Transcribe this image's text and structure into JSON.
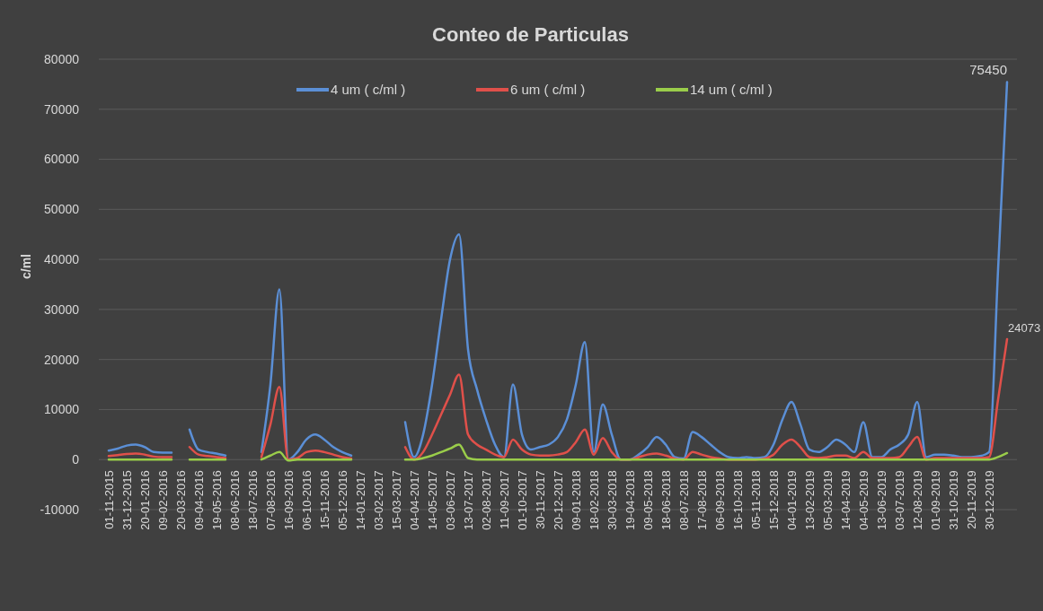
{
  "chart_data": {
    "type": "line",
    "title": "Conteo de Particulas",
    "ylabel": "c/ml",
    "ylim": [
      -10000,
      80000
    ],
    "yticks": [
      -10000,
      0,
      10000,
      20000,
      30000,
      40000,
      50000,
      60000,
      70000,
      80000
    ],
    "grid": "y",
    "legend": "top",
    "marker": "none",
    "line_style": "solid",
    "categories": [
      "01-11-2015",
      null,
      "31-12-2015",
      null,
      "20-01-2016",
      null,
      "09-02-2016",
      null,
      "20-03-2016",
      null,
      "09-04-2016",
      null,
      "19-05-2016",
      null,
      "08-06-2016",
      null,
      "18-07-2016",
      null,
      "07-08-2016",
      null,
      "16-09-2016",
      null,
      "06-10-2016",
      null,
      "15-11-2016",
      null,
      "05-12-2016",
      null,
      "14-01-2017",
      null,
      "03-02-2017",
      null,
      "15-03-2017",
      null,
      "04-04-2017",
      null,
      "14-05-2017",
      null,
      "03-06-2017",
      null,
      "13-07-2017",
      null,
      "02-08-2017",
      null,
      "11-09-2017",
      null,
      "01-10-2017",
      null,
      "30-11-2017",
      null,
      "20-12-2017",
      null,
      "09-01-2018",
      null,
      "18-02-2018",
      null,
      "30-03-2018",
      null,
      "19-04-2018",
      null,
      "09-05-2018",
      null,
      "18-06-2018",
      null,
      "08-07-2018",
      null,
      "17-08-2018",
      null,
      "06-09-2018",
      null,
      "16-10-2018",
      null,
      "05-11-2018",
      null,
      "15-12-2018",
      null,
      "04-01-2019",
      null,
      "13-02-2019",
      null,
      "05-03-2019",
      null,
      "14-04-2019",
      null,
      "04-05-2019",
      null,
      "13-06-2019",
      null,
      "03-07-2019",
      null,
      "12-08-2019",
      null,
      "01-09-2019",
      null,
      "31-10-2019",
      null,
      "20-11-2019",
      null,
      "30-12-2019",
      null,
      null
    ],
    "series": [
      {
        "name": "4 um ( c/ml )",
        "color": "#5b8fd6",
        "values": [
          1800,
          2200,
          2800,
          3000,
          2500,
          1500,
          1400,
          1400,
          null,
          6000,
          2000,
          1500,
          1200,
          800,
          null,
          null,
          null,
          1500,
          15000,
          34000,
          0,
          1500,
          4000,
          5000,
          4000,
          2500,
          1500,
          800,
          null,
          null,
          null,
          null,
          null,
          7500,
          500,
          5000,
          15000,
          28000,
          40000,
          45000,
          22000,
          14000,
          8000,
          3000,
          500,
          15000,
          5000,
          2000,
          2500,
          3000,
          4500,
          8000,
          15000,
          23500,
          1500,
          11000,
          5000,
          0,
          0,
          1000,
          2500,
          4500,
          3000,
          500,
          200,
          5500,
          4500,
          3000,
          1500,
          500,
          300,
          500,
          300,
          500,
          3000,
          8000,
          11500,
          7000,
          2000,
          1500,
          2500,
          4000,
          3000,
          1500,
          7500,
          500,
          500,
          2000,
          3000,
          5000,
          11500,
          500,
          1000,
          1000,
          800,
          500,
          500,
          700,
          1500,
          38000,
          75450
        ],
        "value_labels": [
          null,
          null,
          null,
          null,
          null,
          null,
          null,
          null,
          null,
          null,
          null,
          null,
          null,
          null,
          null,
          null,
          null,
          null,
          null,
          null,
          null,
          null,
          null,
          null,
          null,
          null,
          null,
          null,
          null,
          null,
          null,
          null,
          null,
          null,
          null,
          null,
          null,
          null,
          null,
          null,
          null,
          null,
          null,
          null,
          null,
          null,
          null,
          null,
          null,
          null,
          null,
          null,
          null,
          null,
          null,
          null,
          null,
          null,
          null,
          null,
          null,
          null,
          null,
          null,
          null,
          null,
          null,
          null,
          null,
          null,
          null,
          null,
          null,
          null,
          null,
          null,
          null,
          null,
          null,
          null,
          null,
          null,
          null,
          null,
          null,
          null,
          null,
          null,
          null,
          null,
          null,
          null,
          null,
          null,
          null,
          null,
          null,
          null,
          null,
          null,
          "75450"
        ]
      },
      {
        "name": "6 um ( c/ml )",
        "color": "#e0504a",
        "values": [
          700,
          900,
          1100,
          1200,
          1000,
          600,
          500,
          500,
          null,
          2500,
          1000,
          700,
          500,
          300,
          null,
          null,
          null,
          500,
          7000,
          14500,
          0,
          300,
          1500,
          1800,
          1500,
          1000,
          500,
          200,
          null,
          null,
          null,
          null,
          null,
          2500,
          0,
          1500,
          5000,
          9000,
          13000,
          17000,
          5000,
          3000,
          2000,
          1000,
          500,
          4000,
          2000,
          1000,
          800,
          800,
          1000,
          1500,
          3500,
          6000,
          1000,
          4300,
          1500,
          0,
          0,
          500,
          1000,
          1200,
          800,
          200,
          0,
          1500,
          1000,
          500,
          200,
          0,
          0,
          0,
          0,
          200,
          1000,
          3000,
          4000,
          2500,
          500,
          300,
          500,
          800,
          800,
          300,
          1500,
          300,
          300,
          300,
          500,
          2500,
          4500,
          0,
          300,
          300,
          300,
          300,
          300,
          300,
          500,
          12000,
          24073
        ],
        "value_labels": [
          null,
          null,
          null,
          null,
          null,
          null,
          null,
          null,
          null,
          null,
          null,
          null,
          null,
          null,
          null,
          null,
          null,
          null,
          null,
          null,
          null,
          null,
          null,
          null,
          null,
          null,
          null,
          null,
          null,
          null,
          null,
          null,
          null,
          null,
          null,
          null,
          null,
          null,
          null,
          null,
          null,
          null,
          null,
          null,
          null,
          null,
          null,
          null,
          null,
          null,
          null,
          null,
          null,
          null,
          null,
          null,
          null,
          null,
          null,
          null,
          null,
          null,
          null,
          null,
          null,
          null,
          null,
          null,
          null,
          null,
          null,
          null,
          null,
          null,
          null,
          null,
          null,
          null,
          null,
          null,
          null,
          null,
          null,
          null,
          null,
          null,
          null,
          null,
          null,
          null,
          null,
          null,
          null,
          null,
          null,
          null,
          null,
          null,
          null,
          null,
          "24073"
        ]
      },
      {
        "name": "14 um ( c/ml )",
        "color": "#9acd4a",
        "values": [
          0,
          0,
          0,
          0,
          0,
          0,
          0,
          0,
          null,
          0,
          0,
          0,
          0,
          0,
          null,
          null,
          null,
          0,
          800,
          1500,
          -200,
          0,
          0,
          0,
          0,
          0,
          0,
          0,
          null,
          null,
          null,
          null,
          null,
          0,
          0,
          300,
          800,
          1500,
          2200,
          3000,
          300,
          0,
          0,
          0,
          0,
          0,
          0,
          0,
          0,
          0,
          0,
          0,
          0,
          0,
          0,
          0,
          0,
          0,
          0,
          0,
          0,
          0,
          0,
          0,
          0,
          0,
          0,
          0,
          0,
          0,
          0,
          0,
          0,
          0,
          0,
          0,
          0,
          0,
          0,
          0,
          0,
          0,
          0,
          0,
          0,
          0,
          0,
          0,
          0,
          0,
          0,
          0,
          0,
          0,
          0,
          0,
          0,
          0,
          0,
          500,
          1300
        ]
      }
    ]
  }
}
